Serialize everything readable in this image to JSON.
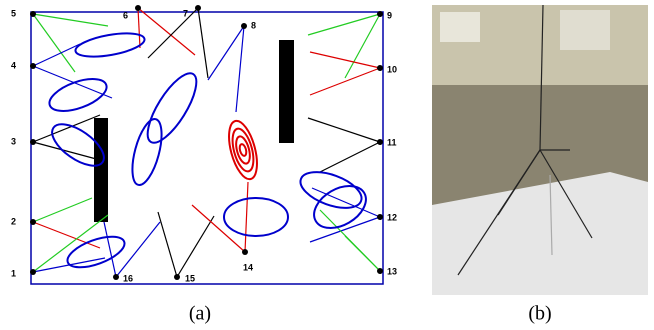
{
  "nodes": [
    {
      "label": "1"
    },
    {
      "label": "2"
    },
    {
      "label": "3"
    },
    {
      "label": "4"
    },
    {
      "label": "5"
    },
    {
      "label": "6"
    },
    {
      "label": "7"
    },
    {
      "label": "8"
    },
    {
      "label": "9"
    },
    {
      "label": "10"
    },
    {
      "label": "11"
    },
    {
      "label": "12"
    },
    {
      "label": "13"
    },
    {
      "label": "14"
    },
    {
      "label": "15"
    },
    {
      "label": "16"
    }
  ],
  "captions": {
    "a": "(a)",
    "b": "(b)"
  }
}
